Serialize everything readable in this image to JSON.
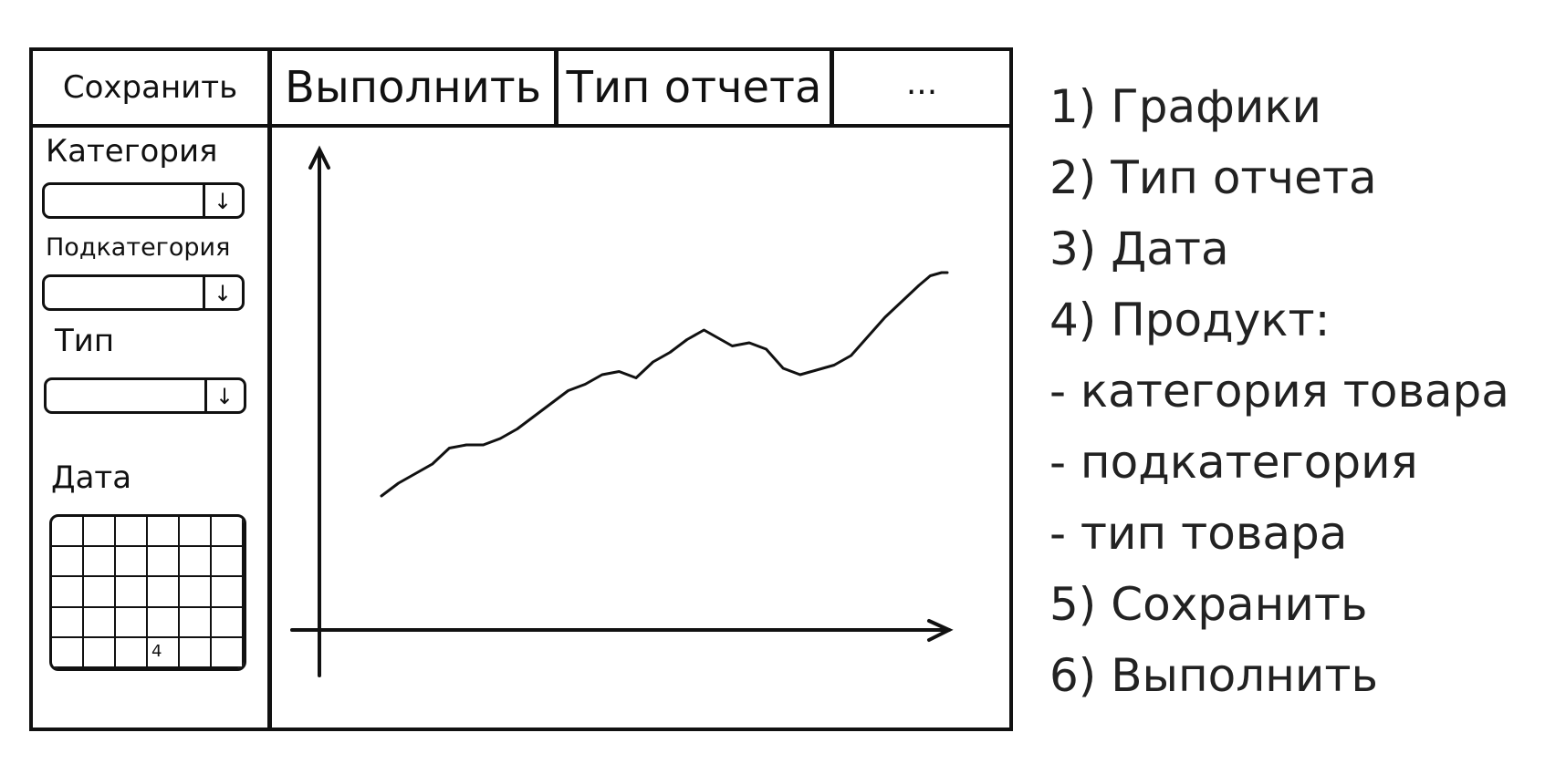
{
  "toolbar": {
    "save_label": "Сохранить",
    "run_label": "Выполнить",
    "report_type_label": "Тип отчета",
    "more_label": "..."
  },
  "sidebar": {
    "category_label": "Категория",
    "subcategory_label": "Подкатегория",
    "type_label": "Тип",
    "date_label": "Дата",
    "dropdown_arrow_icon": "arrow-down-icon",
    "calendar_mark": "4"
  },
  "notes": [
    "1) Графики",
    "2) Тип отчета",
    "3) Дата",
    "4) Продукт:",
    "- категория товара",
    "- подкатегория",
    "- тип товара",
    "5) Сохранить",
    "6) Выполнить"
  ],
  "chart_data": {
    "type": "line",
    "title": "",
    "xlabel": "",
    "ylabel": "",
    "xlim": [
      0,
      100
    ],
    "ylim": [
      0,
      100
    ],
    "grid": false,
    "series": [
      {
        "values": [
          [
            0,
            22
          ],
          [
            3,
            26
          ],
          [
            6,
            29
          ],
          [
            9,
            32
          ],
          [
            12,
            37
          ],
          [
            15,
            38
          ],
          [
            18,
            38
          ],
          [
            21,
            40
          ],
          [
            24,
            43
          ],
          [
            27,
            47
          ],
          [
            30,
            51
          ],
          [
            33,
            55
          ],
          [
            36,
            57
          ],
          [
            39,
            60
          ],
          [
            42,
            61
          ],
          [
            45,
            59
          ],
          [
            48,
            64
          ],
          [
            51,
            67
          ],
          [
            54,
            71
          ],
          [
            57,
            74
          ],
          [
            59,
            72
          ],
          [
            62,
            69
          ],
          [
            65,
            70
          ],
          [
            68,
            68
          ],
          [
            71,
            62
          ],
          [
            74,
            60
          ],
          [
            76,
            61
          ],
          [
            78,
            62
          ],
          [
            80,
            63
          ],
          [
            83,
            66
          ],
          [
            86,
            72
          ],
          [
            89,
            78
          ],
          [
            92,
            83
          ],
          [
            95,
            88
          ],
          [
            97,
            91
          ],
          [
            99,
            92
          ],
          [
            100,
            92
          ]
        ]
      }
    ]
  }
}
